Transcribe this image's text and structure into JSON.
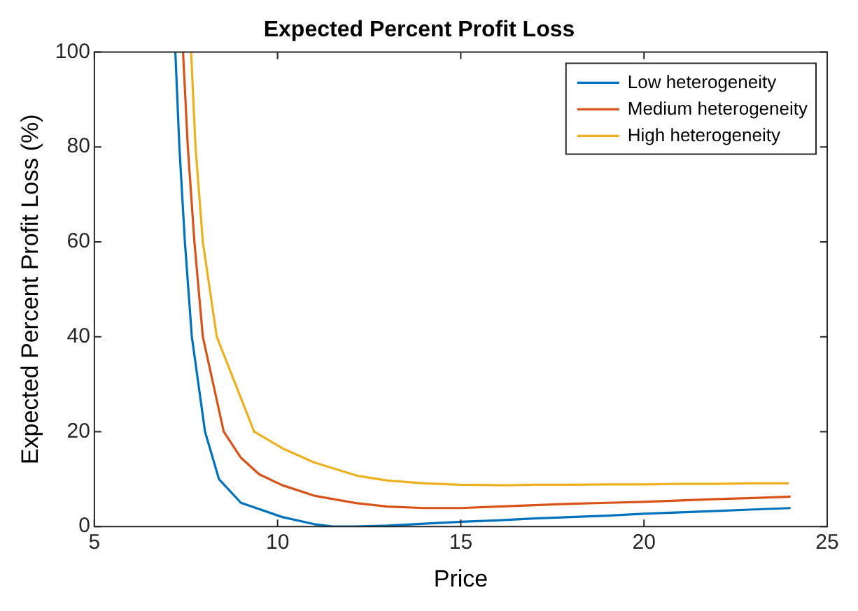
{
  "chart_data": {
    "type": "line",
    "title": "Expected Percent Profit Loss",
    "xlabel": "Price",
    "ylabel": "Expected Percent Profit Loss (%)",
    "xlim": [
      5,
      25
    ],
    "xticks": [
      5,
      10,
      15,
      20,
      25
    ],
    "ylim": [
      0,
      100
    ],
    "yticks": [
      0,
      20,
      40,
      60,
      80,
      100
    ],
    "grid": false,
    "legend": "top right",
    "marker": "none",
    "line_style": "solid",
    "series": [
      {
        "name": "Low heterogeneity",
        "color": "#0072bd",
        "x": [
          7.21,
          7.32,
          7.47,
          7.66,
          8.02,
          8.4,
          9,
          10.13,
          11,
          11.5,
          12,
          13,
          14,
          15,
          16,
          17,
          18,
          19,
          20,
          21,
          22,
          23,
          24
        ],
        "values": [
          100,
          80,
          60,
          40,
          20,
          10,
          5,
          2,
          0.5,
          0,
          0,
          0.2,
          0.6,
          1,
          1.3,
          1.7,
          2,
          2.3,
          2.7,
          3,
          3.3,
          3.6,
          3.9
        ]
      },
      {
        "name": "Medium heterogeneity",
        "color": "#d95319",
        "x": [
          7.42,
          7.55,
          7.73,
          7.96,
          8.53,
          9,
          9.5,
          10.13,
          11,
          12.18,
          13,
          14,
          15,
          16,
          17,
          18,
          19,
          20,
          21,
          22,
          23,
          24
        ],
        "values": [
          100,
          80,
          60,
          40,
          20,
          14.5,
          11,
          8.7,
          6.5,
          4.9,
          4.2,
          3.9,
          3.9,
          4.2,
          4.5,
          4.8,
          5,
          5.2,
          5.5,
          5.8,
          6,
          6.3
        ]
      },
      {
        "name": "High heterogeneity",
        "color": "#edb120",
        "x": [
          7.64,
          7.76,
          7.96,
          8.34,
          9.36,
          10.13,
          11,
          12.18,
          13,
          14,
          15,
          16.27,
          17,
          18,
          19,
          20,
          21,
          22,
          23,
          23.95
        ],
        "values": [
          100,
          80,
          60,
          40,
          20,
          16.5,
          13.5,
          10.7,
          9.7,
          9.1,
          8.8,
          8.7,
          8.8,
          8.8,
          8.9,
          8.9,
          9,
          9,
          9.1,
          9.1
        ]
      }
    ]
  }
}
